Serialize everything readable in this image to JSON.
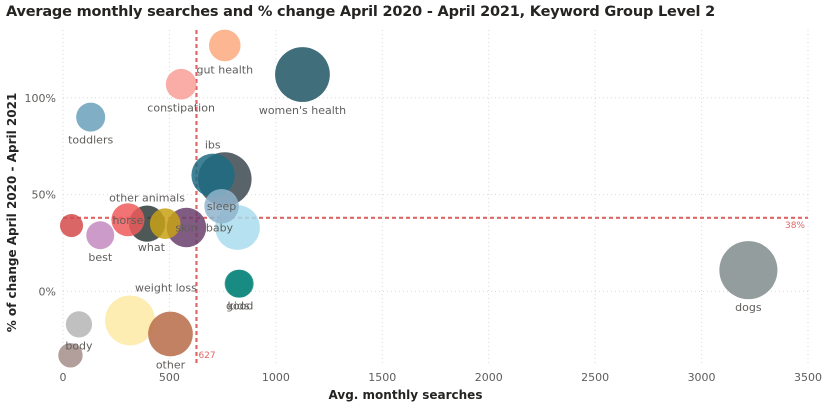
{
  "chart_data": {
    "type": "scatter",
    "title": "Average monthly searches and % change April 2020 - April 2021, Keyword Group Level 2",
    "xlabel": "Avg. monthly searches",
    "ylabel": "% of change April 2020 - April 2021",
    "xlim": [
      0,
      3500
    ],
    "ylim": [
      -0.38,
      1.35
    ],
    "x_ticks": [
      0,
      500,
      1000,
      1500,
      2000,
      2500,
      3000,
      3500
    ],
    "x_tick_labels": [
      "0",
      "500",
      "1000",
      "1500",
      "2000",
      "2500",
      "3000",
      "3500"
    ],
    "y_ticks": [
      0,
      0.5,
      1.0
    ],
    "y_tick_labels": [
      "0%",
      "50%",
      "100%"
    ],
    "grid": true,
    "reference_lines": [
      {
        "axis": "x",
        "value": 627,
        "label": "627",
        "color": "#e06666"
      },
      {
        "axis": "y",
        "value": 0.38,
        "label": "38%",
        "color": "#e06666"
      }
    ],
    "points": [
      {
        "name": "gut health",
        "x": 760,
        "y": 1.27,
        "size": 160,
        "color": "#fba97f",
        "label": "gut health"
      },
      {
        "name": "constipation",
        "x": 555,
        "y": 1.07,
        "size": 150,
        "color": "#f99e96",
        "label": "constipation"
      },
      {
        "name": "women's health",
        "x": 1125,
        "y": 1.12,
        "size": 480,
        "color": "#1f5564",
        "label": "women's health"
      },
      {
        "name": "toddlers",
        "x": 130,
        "y": 0.9,
        "size": 135,
        "color": "#6aa0ba",
        "label": "toddlers"
      },
      {
        "name": "ibs",
        "x": 760,
        "y": 0.58,
        "size": 460,
        "color": "#3b4850",
        "label": "ibs"
      },
      {
        "name": "ibs-2",
        "x": 705,
        "y": 0.6,
        "size": 300,
        "color": "#1d6b82",
        "label": ""
      },
      {
        "name": "sleep",
        "x": 745,
        "y": 0.44,
        "size": 190,
        "color": "#8fb4cc",
        "label": "sleep"
      },
      {
        "name": "baby",
        "x": 820,
        "y": 0.33,
        "size": 320,
        "color": "#a8dcef",
        "label": "baby"
      },
      {
        "name": "good",
        "x": 830,
        "y": 0.04,
        "size": 125,
        "color": "#138a80",
        "label": "good"
      },
      {
        "name": "other animals",
        "x": 395,
        "y": 0.35,
        "size": 210,
        "color": "#2f3c3a",
        "label": "other animals"
      },
      {
        "name": "horse",
        "x": 305,
        "y": 0.37,
        "size": 175,
        "color": "#f05a5a",
        "label": "horse"
      },
      {
        "name": "what",
        "x": 480,
        "y": 0.35,
        "size": 150,
        "color": "#c8a116",
        "label": "what"
      },
      {
        "name": "skin",
        "x": 580,
        "y": 0.33,
        "size": 250,
        "color": "#6b3f6c",
        "label": "skin"
      },
      {
        "name": "best",
        "x": 175,
        "y": 0.29,
        "size": 125,
        "color": "#c48ac0",
        "label": "best"
      },
      {
        "name": "",
        "x": 40,
        "y": 0.34,
        "size": 85,
        "color": "#d34b4b",
        "label": ""
      },
      {
        "name": "kids",
        "x": 825,
        "y": 0.04,
        "size": 125,
        "color": "#138a80",
        "label": "kids"
      },
      {
        "name": "dogs",
        "x": 3220,
        "y": 0.11,
        "size": 540,
        "color": "#808c8d",
        "label": "dogs"
      },
      {
        "name": "weight loss",
        "x": 315,
        "y": -0.15,
        "size": 400,
        "color": "#fdeaa6",
        "label": "weight loss"
      },
      {
        "name": "other",
        "x": 505,
        "y": -0.22,
        "size": 320,
        "color": "#b86b48",
        "label": "other"
      },
      {
        "name": "body",
        "x": 75,
        "y": -0.17,
        "size": 110,
        "color": "#b6b5b5",
        "label": "body"
      },
      {
        "name": "",
        "x": 35,
        "y": -0.33,
        "size": 95,
        "color": "#a48e8a",
        "label": ""
      }
    ]
  }
}
